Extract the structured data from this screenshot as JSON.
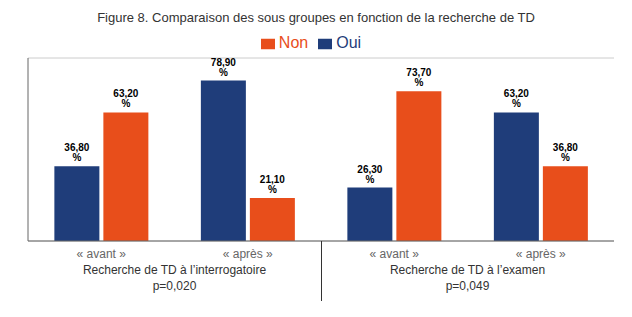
{
  "chart_data": {
    "type": "bar",
    "title": "Figure 8. Comparaison des sous groupes en fonction de la recherche de TD",
    "categories": [
      "« avant »",
      "« après »",
      "« avant »",
      "« après »"
    ],
    "series": [
      {
        "name": "Oui",
        "color": "#1f3d7a",
        "values": [
          36.8,
          78.9,
          26.3,
          63.2
        ],
        "value_labels": [
          "36,80 %",
          "78,90 %",
          "26,30 %",
          "63,20 %"
        ]
      },
      {
        "name": "Non",
        "color": "#e84e1b",
        "values": [
          63.2,
          21.1,
          73.7,
          36.8
        ],
        "value_labels": [
          "63,20 %",
          "21,10 %",
          "73,70 %",
          "36,80 %"
        ]
      }
    ],
    "annotations": [
      "Recherche de TD à l’interrogatoire",
      "p=0,020",
      "Recherche de TD à l’examen",
      "p=0,049"
    ],
    "ylim": [
      0,
      90
    ],
    "yticks": [
      20,
      40,
      60,
      80
    ],
    "grid": true,
    "legend": "top",
    "data_labels": true,
    "tick_labels": "x"
  }
}
